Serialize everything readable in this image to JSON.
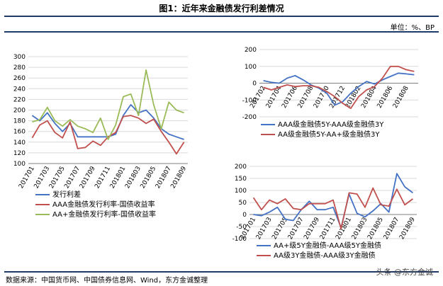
{
  "header": {
    "title": "图1：近年来金融债发行利差情况",
    "unit": "单位：%、BP"
  },
  "footer": {
    "source": "数据来源：中国货币网、中国债券信息网、Wind，东方金诚整理",
    "watermark": "头条 @东方金诚"
  },
  "colors": {
    "blue": "#4472c4",
    "red": "#c0504d",
    "green": "#9bbb59",
    "rule": "#1f3a6b"
  },
  "chart_data": [
    {
      "type": "line",
      "categories": [
        "201701",
        "201702",
        "201703",
        "201704",
        "201705",
        "201706",
        "201707",
        "201708",
        "201709",
        "201710",
        "201711",
        "201712",
        "201801",
        "201802",
        "201803",
        "201804",
        "201805",
        "201806",
        "201807",
        "201808",
        "201809"
      ],
      "ylim": [
        100,
        300
      ],
      "yticks": [
        100,
        120,
        140,
        160,
        180,
        200,
        220,
        240,
        260,
        280,
        300
      ],
      "xtick_labels": [
        "201701",
        "201703",
        "201705",
        "201707",
        "201709",
        "201711",
        "201801",
        "201803",
        "201805",
        "201807",
        "201809"
      ],
      "series": [
        {
          "name": "发行利差",
          "color": "#4472c4",
          "values": [
            190,
            180,
            195,
            175,
            160,
            175,
            150,
            150,
            150,
            150,
            150,
            155,
            190,
            210,
            195,
            200,
            185,
            165,
            155,
            150,
            145
          ]
        },
        {
          "name": "AAA金融债发行利率-国债收益率",
          "color": "#c0504d",
          "values": [
            148,
            172,
            180,
            158,
            148,
            178,
            128,
            130,
            142,
            134,
            150,
            158,
            188,
            190,
            185,
            175,
            183,
            160,
            140,
            118,
            140
          ]
        },
        {
          "name": "AA+金融债发行利率-国债收益率",
          "color": "#9bbb59",
          "values": [
            178,
            182,
            205,
            180,
            170,
            182,
            170,
            165,
            158,
            185,
            145,
            172,
            225,
            230,
            190,
            275,
            210,
            165,
            215,
            200,
            195
          ]
        }
      ]
    },
    {
      "type": "line",
      "categories": [
        "201702",
        "201703",
        "201704",
        "201705",
        "201706",
        "201707",
        "201708",
        "201709",
        "201710",
        "201711",
        "201712",
        "201801",
        "201802",
        "201803",
        "201804",
        "201805",
        "201806",
        "201807",
        "201808",
        "201809"
      ],
      "ylim": [
        -200,
        200
      ],
      "yticks": [
        -200,
        -100,
        0,
        100,
        200
      ],
      "xtick_labels": [
        "201702",
        "201704",
        "201706",
        "201708",
        "201710",
        "201712",
        "201802",
        "201804",
        "201806",
        "201808"
      ],
      "series": [
        {
          "name": "AAA级金融债5Y-AAA级金融债3Y",
          "color": "#4472c4",
          "values": [
            15,
            5,
            0,
            30,
            45,
            20,
            -10,
            -30,
            -60,
            -130,
            -110,
            -60,
            -20,
            10,
            -5,
            20,
            40,
            60,
            55,
            50
          ]
        },
        {
          "name": "AA级金融债5Y-AA+级金融债3Y",
          "color": "#c0504d",
          "values": [
            -25,
            -40,
            -25,
            -10,
            -20,
            -15,
            -15,
            -25,
            -50,
            -80,
            -120,
            -150,
            -80,
            -40,
            -20,
            30,
            100,
            100,
            80,
            70
          ]
        }
      ]
    },
    {
      "type": "line",
      "categories": [
        "201701",
        "201702",
        "201703",
        "201704",
        "201705",
        "201706",
        "201707",
        "201708",
        "201709",
        "201710",
        "201711",
        "201712",
        "201801",
        "201802",
        "201803",
        "201804",
        "201805",
        "201806",
        "201807",
        "201808",
        "201809"
      ],
      "ylim": [
        -100,
        200
      ],
      "yticks": [
        -100,
        -50,
        0,
        50,
        100,
        150,
        200
      ],
      "xtick_labels": [
        "201701",
        "201703",
        "201705",
        "201707",
        "201709",
        "201711",
        "201801",
        "201803",
        "201805",
        "201807",
        "201809"
      ],
      "series": [
        {
          "name": "AA+级5Y金融债-AAA级5Y金融债",
          "color": "#4472c4",
          "values": [
            0,
            -5,
            10,
            30,
            -20,
            -25,
            20,
            55,
            20,
            20,
            30,
            -55,
            85,
            5,
            -10,
            15,
            45,
            10,
            170,
            115,
            90
          ]
        },
        {
          "name": "AA级3Y金融债-AAA级3Y金融债",
          "color": "#c0504d",
          "values": [
            70,
            20,
            60,
            45,
            65,
            25,
            20,
            45,
            45,
            45,
            60,
            -60,
            90,
            85,
            30,
            110,
            40,
            35,
            105,
            40,
            65
          ]
        }
      ]
    }
  ]
}
